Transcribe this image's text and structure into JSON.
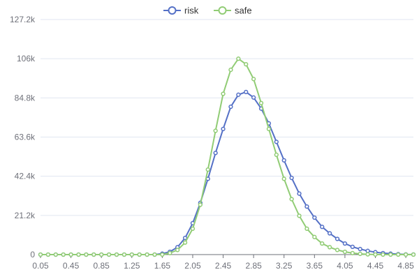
{
  "chart_data": {
    "type": "line",
    "legend_position": "top-center",
    "grid": true,
    "ylim": [
      0,
      127200
    ],
    "y_ticks": [
      0,
      21200,
      42400,
      63600,
      84800,
      106000,
      127200
    ],
    "y_tick_labels": [
      "0",
      "21.2k",
      "42.4k",
      "63.6k",
      "84.8k",
      "106k",
      "127.2k"
    ],
    "x_tick_labels": [
      "0.05",
      "0.45",
      "0.85",
      "1.25",
      "1.65",
      "2.05",
      "2.45",
      "2.85",
      "3.25",
      "3.65",
      "4.05",
      "4.45",
      "4.85"
    ],
    "x": [
      0.05,
      0.15,
      0.25,
      0.35,
      0.45,
      0.55,
      0.65,
      0.75,
      0.85,
      0.95,
      1.05,
      1.15,
      1.25,
      1.35,
      1.45,
      1.55,
      1.65,
      1.75,
      1.85,
      1.95,
      2.05,
      2.15,
      2.25,
      2.35,
      2.45,
      2.55,
      2.65,
      2.75,
      2.85,
      2.95,
      3.05,
      3.15,
      3.25,
      3.35,
      3.45,
      3.55,
      3.65,
      3.75,
      3.85,
      3.95,
      4.05,
      4.15,
      4.25,
      4.35,
      4.45,
      4.55,
      4.65,
      4.75,
      4.85,
      4.95
    ],
    "series": [
      {
        "name": "risk",
        "color": "#5470c6",
        "values": [
          0,
          0,
          0,
          0,
          0,
          0,
          0,
          0,
          0,
          0,
          0,
          0,
          0,
          0,
          0,
          0,
          500,
          1500,
          4000,
          9000,
          17000,
          28000,
          41000,
          55000,
          68000,
          80000,
          86500,
          88000,
          85000,
          79000,
          71000,
          61000,
          51000,
          41500,
          33000,
          26000,
          20000,
          15000,
          11500,
          8500,
          6000,
          4200,
          3000,
          2000,
          1300,
          800,
          500,
          250,
          100,
          50
        ]
      },
      {
        "name": "safe",
        "color": "#91cc75",
        "values": [
          0,
          0,
          0,
          0,
          0,
          0,
          0,
          0,
          0,
          0,
          0,
          0,
          0,
          0,
          0,
          0,
          0,
          800,
          2500,
          6500,
          14000,
          27000,
          46000,
          67000,
          87000,
          100000,
          106000,
          103000,
          95000,
          82000,
          68000,
          54000,
          41000,
          30000,
          21000,
          14000,
          9500,
          6000,
          4000,
          2500,
          1500,
          800,
          400,
          150,
          50,
          0,
          0,
          0,
          0,
          0
        ]
      }
    ]
  }
}
